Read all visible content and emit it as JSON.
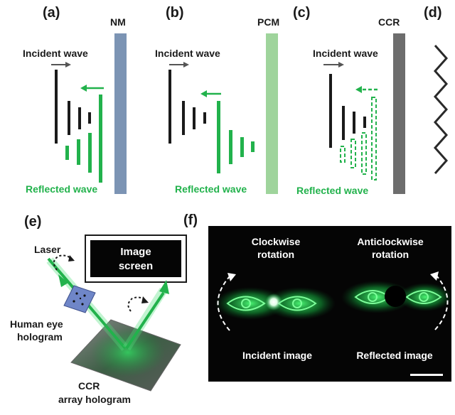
{
  "colors": {
    "green": "#22b24c",
    "black": "#1a1a1a",
    "nm_bar": "#7c94b4",
    "pcm_bar": "#9fd49c",
    "ccr_bar": "#6d6d6d",
    "panel_f_bg": "#050505",
    "hologram_blue": "#6f86c8"
  },
  "panel_a": {
    "letter": "(a)",
    "surface": "NM",
    "incident": "Incident wave",
    "reflected": "Reflected wave"
  },
  "panel_b": {
    "letter": "(b)",
    "surface": "PCM",
    "incident": "Incident wave",
    "reflected": "Reflected wave"
  },
  "panel_c": {
    "letter": "(c)",
    "surface": "CCR",
    "incident": "Incident wave",
    "reflected": "Reflected wave"
  },
  "panel_d": {
    "letter": "(d)"
  },
  "panel_e": {
    "letter": "(e)",
    "laser": "Laser",
    "screen_line1": "Image",
    "screen_line2": "screen",
    "eye_holo_line1": "Human eye",
    "eye_holo_line2": "hologram",
    "ccr_holo_line1": "CCR",
    "ccr_holo_line2": "array hologram"
  },
  "panel_f": {
    "letter": "(f)",
    "cw_line1": "Clockwise",
    "cw_line2": "rotation",
    "acw_line1": "Anticlockwise",
    "acw_line2": "rotation",
    "incident_image": "Incident image",
    "reflected_image": "Reflected image"
  }
}
